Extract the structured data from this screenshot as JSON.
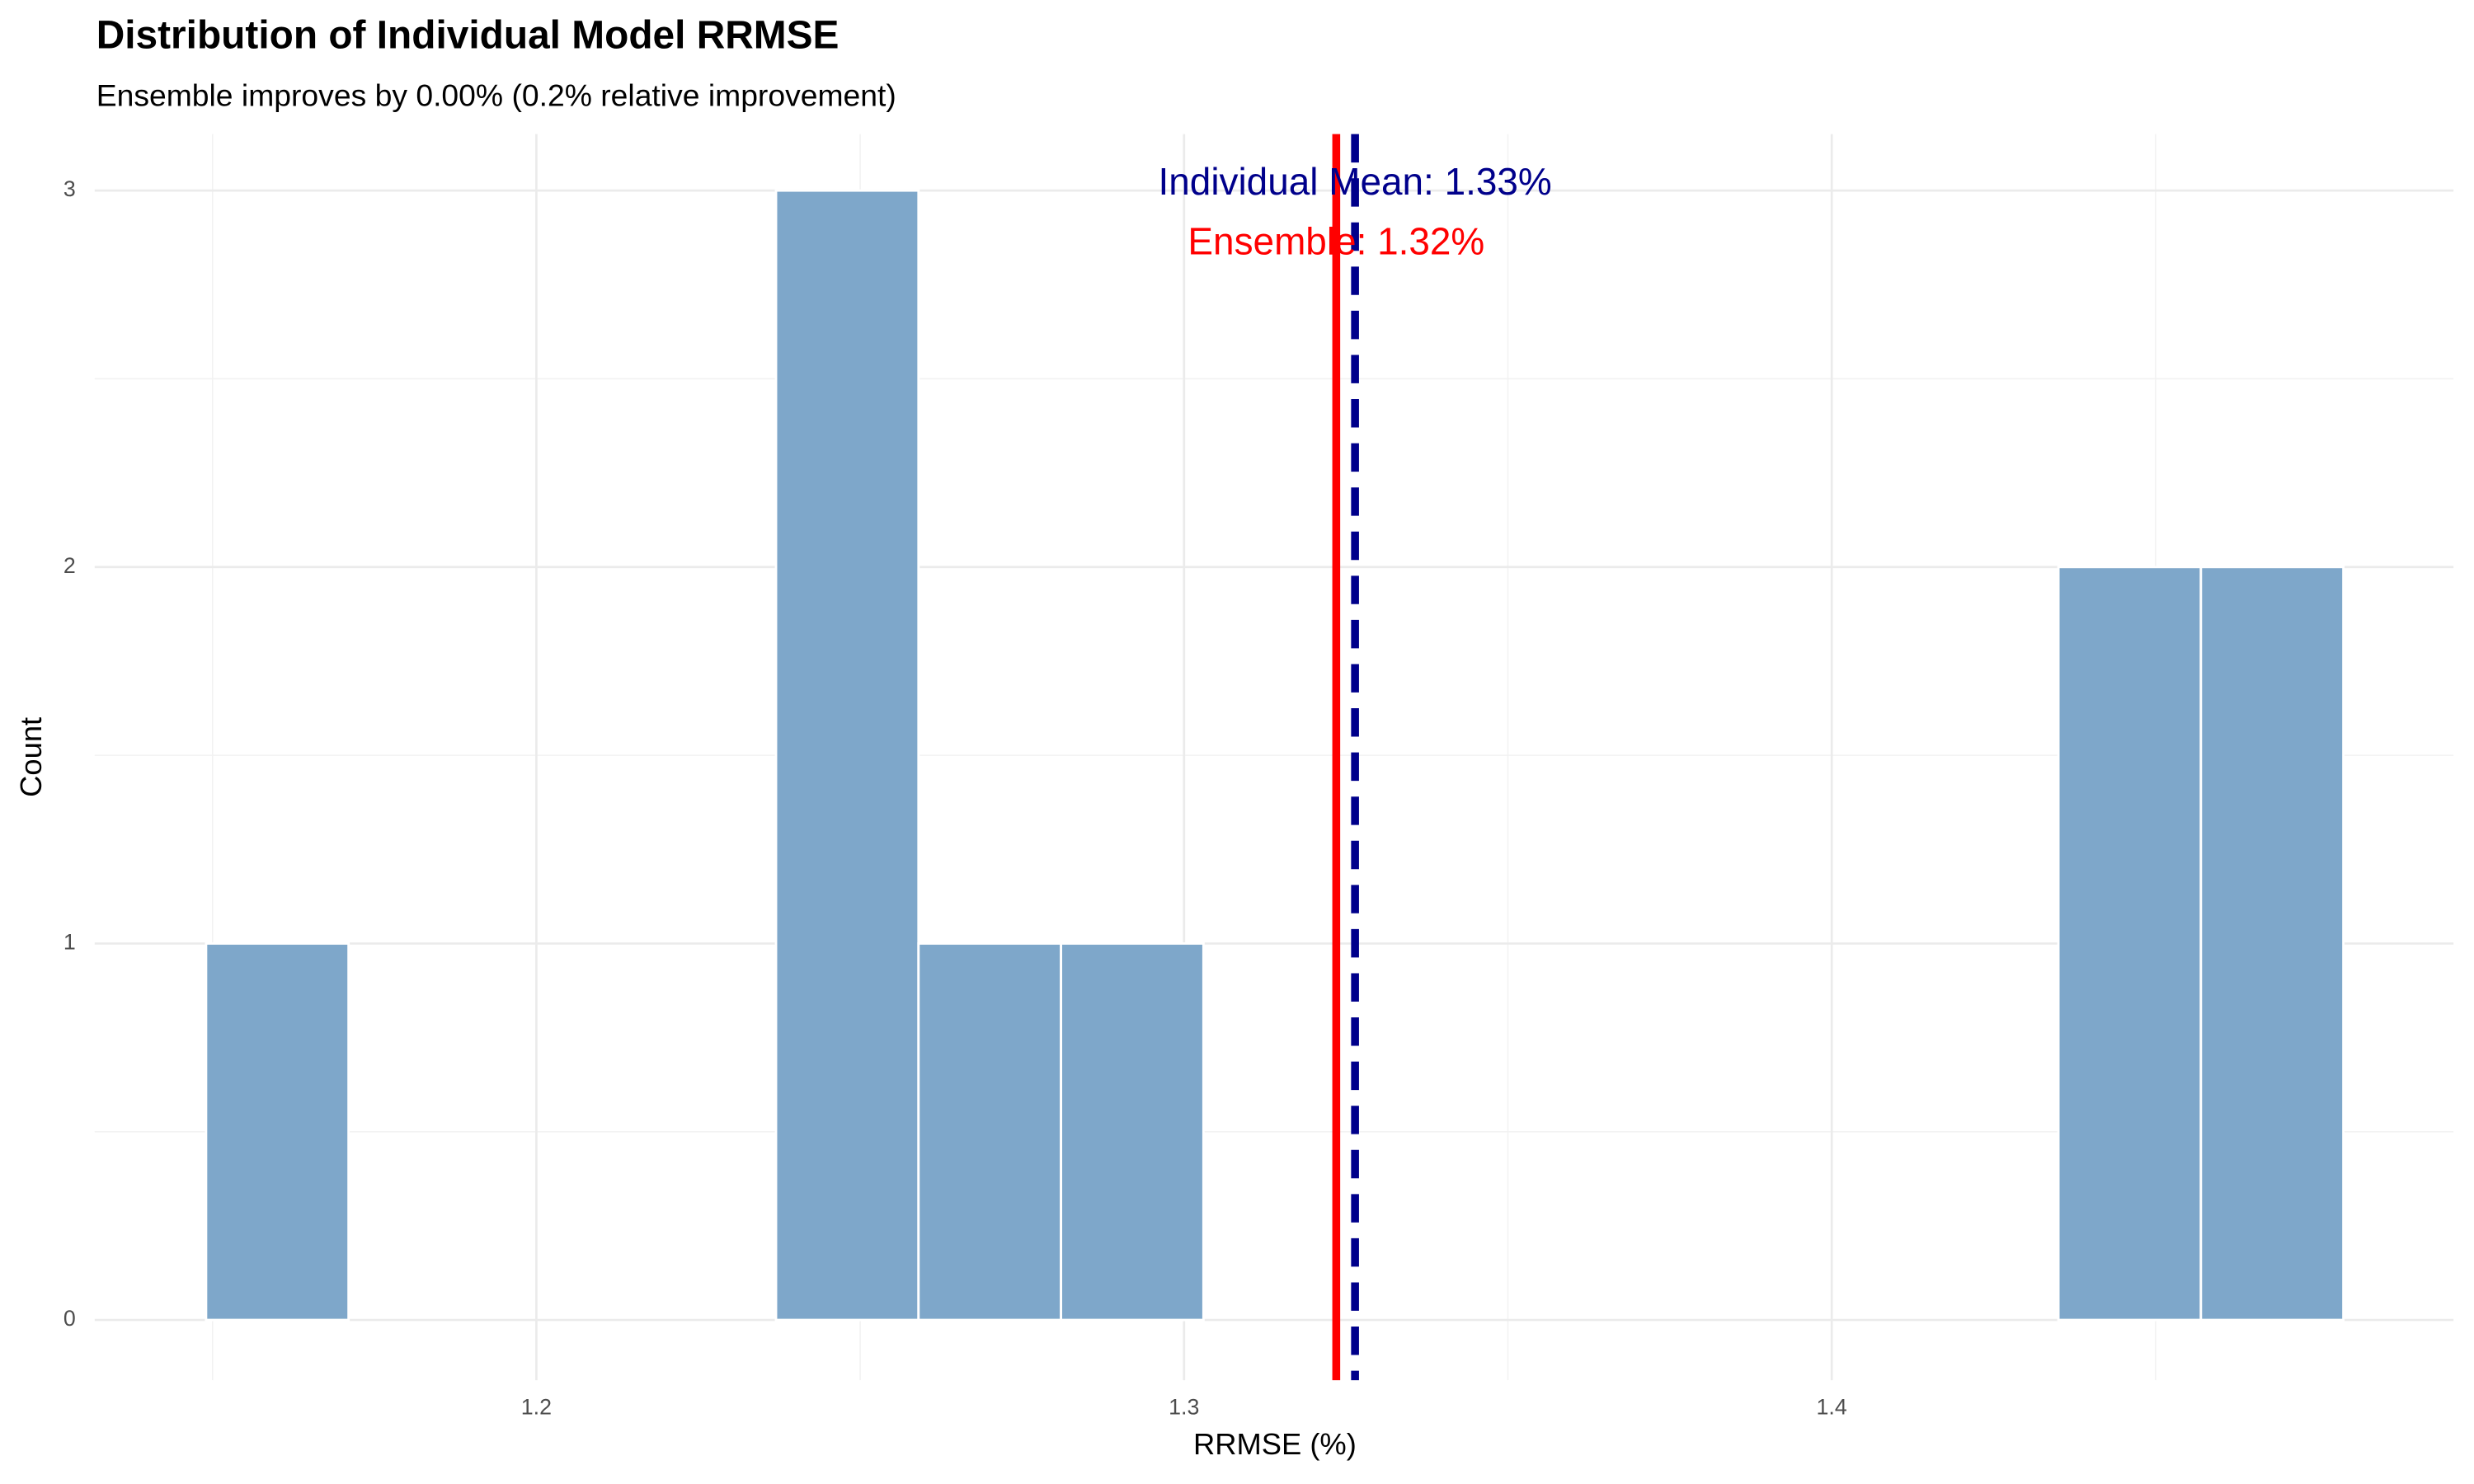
{
  "chart_data": {
    "type": "histogram",
    "title": "Distribution of Individual Model RRMSE",
    "subtitle": "Ensemble improves by 0.00% (0.2% relative improvement)",
    "x_label": "RRMSE (%)",
    "y_label": "Count",
    "bins": [
      1.149,
      1.171,
      1.193,
      1.215,
      1.237,
      1.259,
      1.281,
      1.303,
      1.325,
      1.347,
      1.369,
      1.391,
      1.413,
      1.435,
      1.457,
      1.479
    ],
    "values": [
      1,
      0,
      0,
      0,
      3,
      1,
      1,
      0,
      0,
      0,
      0,
      0,
      0,
      2,
      2
    ],
    "color": "#7ea7ca",
    "xlim": [
      1.1318,
      1.496
    ],
    "ylim": [
      -0.16,
      3.15
    ],
    "xticks": [
      1.2,
      1.3,
      1.4
    ],
    "yticks": [
      0,
      1,
      2,
      3
    ],
    "x_minor_ticks": [
      1.15,
      1.25,
      1.35,
      1.45
    ],
    "y_minor_ticks": [
      0.5,
      1.5,
      2.5
    ],
    "grid": true,
    "reference_lines": [
      {
        "value": 1.3235,
        "color": "#ff0000",
        "dash": false,
        "label": "Ensemble: 1.32%"
      },
      {
        "value": 1.3264,
        "color": "#00008b",
        "dash": true,
        "label": "Individual Mean: 1.33%"
      }
    ]
  }
}
